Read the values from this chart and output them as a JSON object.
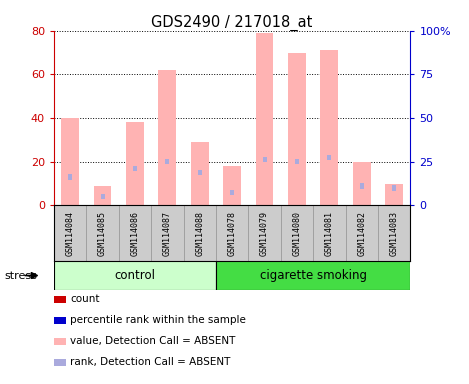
{
  "title": "GDS2490 / 217018_at",
  "samples": [
    "GSM114084",
    "GSM114085",
    "GSM114086",
    "GSM114087",
    "GSM114088",
    "GSM114078",
    "GSM114079",
    "GSM114080",
    "GSM114081",
    "GSM114082",
    "GSM114083"
  ],
  "groups": [
    {
      "name": "control",
      "count": 5,
      "color": "#ccffcc"
    },
    {
      "name": "cigarette smoking",
      "count": 6,
      "color": "#44dd44"
    }
  ],
  "pink_bars": [
    40,
    9,
    38,
    62,
    29,
    18,
    79,
    70,
    71,
    20,
    10
  ],
  "blue_dots": [
    13,
    4,
    17,
    20,
    15,
    6,
    21,
    20,
    22,
    9,
    8
  ],
  "ylim_left": [
    0,
    80
  ],
  "ylim_right": [
    0,
    100
  ],
  "yticks_left": [
    0,
    20,
    40,
    60,
    80
  ],
  "yticks_right": [
    0,
    25,
    50,
    75,
    100
  ],
  "yticklabels_right": [
    "0",
    "25",
    "50",
    "75",
    "100%"
  ],
  "left_color": "#cc0000",
  "right_color": "#0000cc",
  "pink_color": "#ffb3b3",
  "blue_color": "#aaaadd",
  "sample_bg": "#cccccc",
  "legend_items": [
    {
      "label": "count",
      "color": "#cc0000"
    },
    {
      "label": "percentile rank within the sample",
      "color": "#0000cc"
    },
    {
      "label": "value, Detection Call = ABSENT",
      "color": "#ffb3b3"
    },
    {
      "label": "rank, Detection Call = ABSENT",
      "color": "#aaaadd"
    }
  ],
  "stress_label": "stress",
  "fig_bg": "#ffffff"
}
